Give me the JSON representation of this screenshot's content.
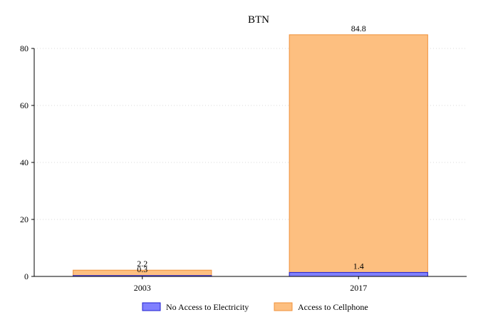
{
  "chart_data": {
    "type": "bar",
    "stacked": false,
    "overlapping": true,
    "title": "BTN",
    "xlabel": "",
    "ylabel": "",
    "categories": [
      "2003",
      "2017"
    ],
    "ylim": [
      0,
      85
    ],
    "yticks": [
      0,
      20,
      40,
      60,
      80
    ],
    "grid": true,
    "legend_position": "bottom",
    "series": [
      {
        "name": "Access to Cellphone",
        "values": [
          2.2,
          84.8
        ],
        "labels": [
          "2.2",
          "84.8"
        ],
        "color": "#fdbf80",
        "stroke": "#f0913a"
      },
      {
        "name": "No Access to Electricity",
        "values": [
          0.3,
          1.4
        ],
        "labels": [
          "0.3",
          "1.4"
        ],
        "color": "#8080ff",
        "stroke": "#2020d0"
      }
    ],
    "legend_order": [
      1,
      0
    ]
  }
}
